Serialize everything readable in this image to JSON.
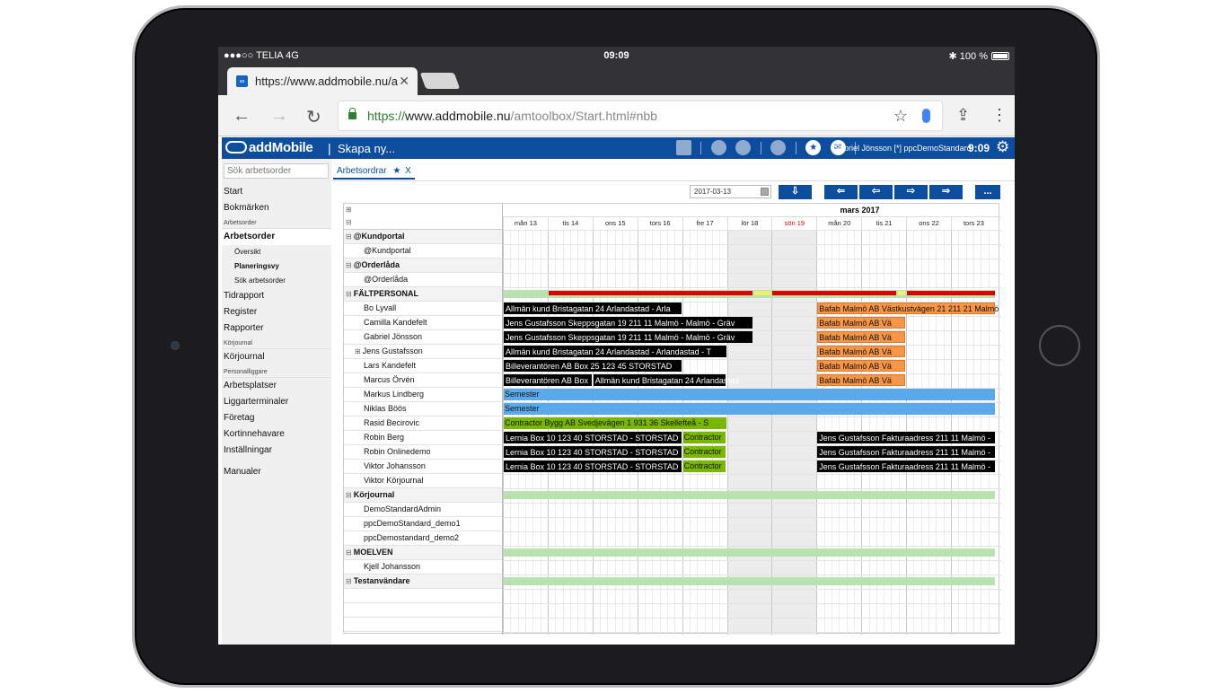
{
  "status": {
    "carrier": "●●●○○ TELIA  4G",
    "time": "09:09",
    "battery": "✱  100 %"
  },
  "browser": {
    "tab_title": "https://www.addmobile.nu/a",
    "tab_close": "✕",
    "url_scheme": "https://",
    "url_host": "www.addmobile.nu",
    "url_path": "/amtoolbox/Start.html#nbb"
  },
  "app": {
    "logo": "addMobile",
    "separator": "|",
    "create_label": "Skapa ny...",
    "user": "Gabriel Jönsson [*] ppcDemoStandard",
    "time": "9:09"
  },
  "sidebar": {
    "search_placeholder": "Sök arbetsorder",
    "items": {
      "start": "Start",
      "bookmarks": "Bokmärken",
      "section_workorder": "Arbetsorder",
      "workorder": "Arbetsorder",
      "overview": "Översikt",
      "planning": "Planeringsvy",
      "search_workorder": "Sök arbetsorder",
      "timereport": "Tidrapport",
      "register": "Register",
      "reports": "Rapporter",
      "section_journal": "Körjournal",
      "journal": "Körjournal",
      "section_personnel": "Personalliggare",
      "workplaces": "Arbetsplatser",
      "terminals": "Liggarterminaler",
      "company": "Företag",
      "cardholders": "Kortinnehavare",
      "settings": "Inställningar",
      "manuals": "Manualer"
    }
  },
  "content": {
    "tab_label": "Arbetsordrar",
    "tab_star": "★",
    "tab_close": "X",
    "date_value": "2017-03-13",
    "btn_down": "⇩",
    "btn_first": "⇐",
    "btn_prev": "⇦",
    "btn_next": "⇨",
    "btn_last": "⇒",
    "btn_more": "..."
  },
  "planner": {
    "month": "mars 2017",
    "days": [
      "mån 13",
      "tis 14",
      "ons 15",
      "tors 16",
      "fre 17",
      "lör 18",
      "sön 19",
      "mån 20",
      "tis 21",
      "ons 22",
      "tors 23"
    ],
    "rows": [
      {
        "type": "group",
        "label": "@Kundportal"
      },
      {
        "type": "child",
        "label": "@Kundportal"
      },
      {
        "type": "group",
        "label": "@Orderlåda"
      },
      {
        "type": "child",
        "label": "@Orderlåda"
      },
      {
        "type": "group",
        "label": "FÄLTPERSONAL"
      },
      {
        "type": "child",
        "label": "Bo Lyvall"
      },
      {
        "type": "child",
        "label": "Camilla Kandefelt"
      },
      {
        "type": "child",
        "label": "Gabriel Jönsson"
      },
      {
        "type": "child",
        "label": "Jens Gustafsson",
        "expand": "⊞"
      },
      {
        "type": "child",
        "label": "Lars Kandefelt"
      },
      {
        "type": "child",
        "label": "Marcus Örvén"
      },
      {
        "type": "child",
        "label": "Markus Lindberg"
      },
      {
        "type": "child",
        "label": "Niklas Böös"
      },
      {
        "type": "child",
        "label": "Rasid Becirovic"
      },
      {
        "type": "child",
        "label": "Robin Berg"
      },
      {
        "type": "child",
        "label": "Robin Onlinedemo"
      },
      {
        "type": "child",
        "label": "Viktor Johansson"
      },
      {
        "type": "child",
        "label": "Viktor Körjournal"
      },
      {
        "type": "group",
        "label": "Körjournal"
      },
      {
        "type": "child",
        "label": "DemoStandardAdmin"
      },
      {
        "type": "child",
        "label": "ppcDemoStandard_demo1"
      },
      {
        "type": "child",
        "label": "ppcDemostandard_demo2"
      },
      {
        "type": "group",
        "label": "MOELVEN"
      },
      {
        "type": "child",
        "label": "Kjell Johansson"
      },
      {
        "type": "group",
        "label": "Testanvändare"
      }
    ],
    "bars": [
      {
        "row": 4,
        "start": 0,
        "end": 11,
        "color": "lgreen",
        "text": ""
      },
      {
        "row": 4,
        "start": 1,
        "end": 5.6,
        "color": "red",
        "text": ""
      },
      {
        "row": 4,
        "start": 5.6,
        "end": 6.0,
        "color": "yellow",
        "text": ""
      },
      {
        "row": 4,
        "start": 6.0,
        "end": 8.8,
        "color": "red",
        "text": ""
      },
      {
        "row": 4,
        "start": 8.8,
        "end": 9.0,
        "color": "yellow",
        "text": ""
      },
      {
        "row": 4,
        "start": 9.0,
        "end": 11,
        "color": "red",
        "text": ""
      },
      {
        "row": 5,
        "start": 0,
        "end": 4.0,
        "color": "black",
        "text": "Allmän kund Bristagatan 24 Arlandastad - Arla"
      },
      {
        "row": 5,
        "start": 7.0,
        "end": 11,
        "color": "orange",
        "text": "Bafab Malmö AB Västkustvägen 21 211 21 Malmö"
      },
      {
        "row": 6,
        "start": 0,
        "end": 5.6,
        "color": "black",
        "text": "Jens Gustafsson Skeppsgatan 19 211 11 Malmö - Malmö - Gräv"
      },
      {
        "row": 6,
        "start": 7.0,
        "end": 9.0,
        "color": "orange",
        "text": "Bafab Malmö AB Vä"
      },
      {
        "row": 7,
        "start": 0,
        "end": 5.6,
        "color": "black",
        "text": "Jens Gustafsson Skeppsgatan 19 211 11 Malmö - Malmö - Gräv"
      },
      {
        "row": 7,
        "start": 7.0,
        "end": 9.0,
        "color": "orange",
        "text": "Bafab Malmö AB Vä"
      },
      {
        "row": 8,
        "start": 0,
        "end": 5.0,
        "color": "black",
        "text": "Allmän kund Bristagatan 24 Arlandastad - Arlandastad - T"
      },
      {
        "row": 8,
        "start": 7.0,
        "end": 9.0,
        "color": "orange",
        "text": "Bafab Malmö AB Vä"
      },
      {
        "row": 9,
        "start": 0,
        "end": 4.0,
        "color": "black",
        "text": "Billeverantören AB Box 25 123 45 STORSTAD"
      },
      {
        "row": 9,
        "start": 7.0,
        "end": 9.0,
        "color": "orange",
        "text": "Bafab Malmö AB Vä"
      },
      {
        "row": 10,
        "start": 0,
        "end": 2.0,
        "color": "black",
        "text": "Billeverantören AB Box"
      },
      {
        "row": 10,
        "start": 2.0,
        "end": 5.0,
        "color": "black",
        "text": "Allmän kund Bristagatan 24 Arlandastad"
      },
      {
        "row": 10,
        "start": 7.0,
        "end": 9.0,
        "color": "orange",
        "text": "Bafab Malmö AB Vä"
      },
      {
        "row": 11,
        "start": 0,
        "end": 11,
        "color": "blue",
        "text": "Semester"
      },
      {
        "row": 12,
        "start": 0,
        "end": 11,
        "color": "blue",
        "text": "Semester"
      },
      {
        "row": 13,
        "start": 0,
        "end": 5.0,
        "color": "green",
        "text": "Contractor Bygg AB Svedjevägen 1 931 36 Skellefteå - S"
      },
      {
        "row": 14,
        "start": 0,
        "end": 4.0,
        "color": "black",
        "text": "Lernia Box 10 123 40 STORSTAD - STORSTAD"
      },
      {
        "row": 14,
        "start": 4.0,
        "end": 5.0,
        "color": "green",
        "text": "Contractor"
      },
      {
        "row": 14,
        "start": 7.0,
        "end": 11,
        "color": "black",
        "text": "Jens Gustafsson Fakturaadress 211 11 Malmö -"
      },
      {
        "row": 15,
        "start": 0,
        "end": 4.0,
        "color": "black",
        "text": "Lernia Box 10 123 40 STORSTAD - STORSTAD"
      },
      {
        "row": 15,
        "start": 4.0,
        "end": 5.0,
        "color": "green",
        "text": "Contractor"
      },
      {
        "row": 15,
        "start": 7.0,
        "end": 11,
        "color": "black",
        "text": "Jens Gustafsson Fakturaadress 211 11 Malmö -"
      },
      {
        "row": 16,
        "start": 0,
        "end": 4.0,
        "color": "black",
        "text": "Lernia Box 10 123 40 STORSTAD - STORSTAD"
      },
      {
        "row": 16,
        "start": 4.0,
        "end": 5.0,
        "color": "green",
        "text": "Contractor"
      },
      {
        "row": 16,
        "start": 7.0,
        "end": 11,
        "color": "black",
        "text": "Jens Gustafsson Fakturaadress 211 11 Malmö -"
      },
      {
        "row": 18,
        "start": 0,
        "end": 11,
        "color": "lgreen",
        "text": ""
      },
      {
        "row": 22,
        "start": 0,
        "end": 11,
        "color": "lgreen",
        "text": ""
      },
      {
        "row": 24,
        "start": 0,
        "end": 11,
        "color": "lgreen",
        "text": ""
      }
    ]
  },
  "colors": {
    "brand": "#0d4d9e",
    "overbook": "#e00000",
    "vacation": "#5aa9ec",
    "contractor": "#7ab800",
    "customer": "#f79646"
  }
}
